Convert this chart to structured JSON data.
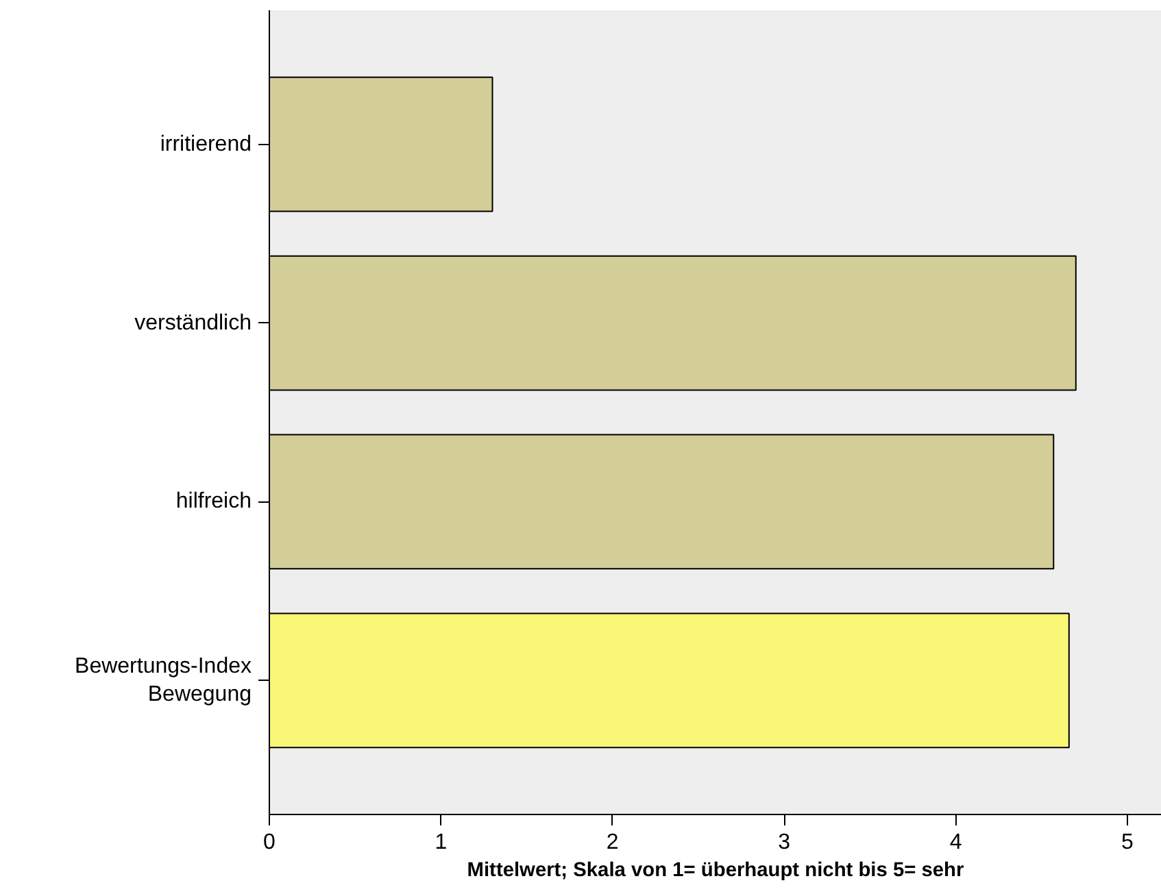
{
  "chart_data": {
    "type": "bar",
    "orientation": "horizontal",
    "xlabel": "Mittelwert; Skala von 1= überhaupt nicht bis 5= sehr",
    "categories": [
      "irritierend",
      "verständlich",
      "hilfreich",
      "Bewertungs-Index\nBewegung"
    ],
    "values": [
      1.3,
      4.7,
      4.57,
      4.66
    ],
    "colors": [
      "#d3cd97",
      "#d3cd97",
      "#d3cd97",
      "#f9f775"
    ],
    "xlim": [
      0,
      5.2
    ],
    "xticks": [
      0,
      1,
      2,
      3,
      4,
      5
    ],
    "grid": false
  }
}
